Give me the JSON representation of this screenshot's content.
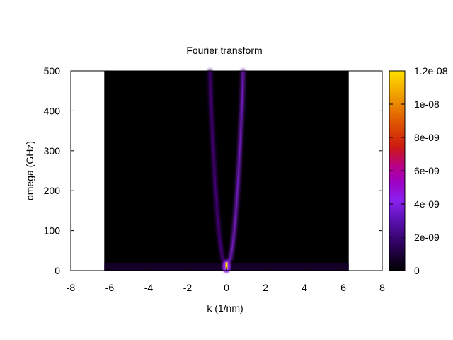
{
  "chart_data": {
    "type": "heatmap",
    "title": "Fourier transform",
    "xlabel": "k (1/nm)",
    "ylabel": "omega (GHz)",
    "xlim": [
      -8,
      8
    ],
    "ylim": [
      0,
      500
    ],
    "x_ticks": [
      "-8",
      "-6",
      "-4",
      "-2",
      "0",
      "2",
      "4",
      "6",
      "8"
    ],
    "y_ticks": [
      "0",
      "100",
      "200",
      "300",
      "400",
      "500"
    ],
    "data_extent": {
      "k": [
        -6.28,
        6.28
      ],
      "omega": [
        0,
        500
      ]
    },
    "colorbar": {
      "range": [
        0,
        1.2e-08
      ],
      "ticks": [
        "0",
        "2e-09",
        "4e-09",
        "6e-09",
        "8e-09",
        "1e-08",
        "1.2e-08"
      ],
      "palette": [
        "#000000",
        "#1a0033",
        "#4b0082",
        "#8a2be2",
        "#9b00ff",
        "#b0007f",
        "#cc2200",
        "#e06000",
        "#f0a000",
        "#ffe000"
      ]
    },
    "features": [
      {
        "name": "dispersion branch",
        "points_k_omega": [
          [
            0,
            15
          ],
          [
            0.2,
            30
          ],
          [
            0.3,
            60
          ],
          [
            0.4,
            100
          ],
          [
            0.5,
            160
          ],
          [
            0.6,
            230
          ],
          [
            0.7,
            320
          ],
          [
            0.8,
            420
          ],
          [
            0.85,
            500
          ]
        ],
        "intensity": 3.5e-09
      },
      {
        "name": "dispersion branch mirrored",
        "points_k_omega": [
          [
            0,
            15
          ],
          [
            -0.2,
            30
          ],
          [
            -0.3,
            60
          ],
          [
            -0.4,
            100
          ],
          [
            -0.5,
            160
          ],
          [
            -0.6,
            230
          ],
          [
            -0.7,
            320
          ],
          [
            -0.8,
            420
          ],
          [
            -0.85,
            500
          ]
        ],
        "intensity": 2.5e-09
      },
      {
        "name": "low-frequency band",
        "omega": 10,
        "k_range": [
          -6.28,
          6.28
        ],
        "intensity": 1e-09
      },
      {
        "name": "peak",
        "k": 0,
        "omega": 12,
        "intensity": 1.2e-08
      }
    ]
  }
}
